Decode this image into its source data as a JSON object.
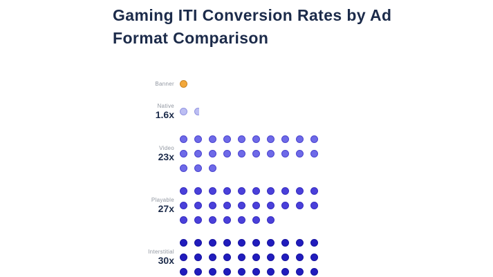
{
  "header": {
    "title": "Gaming ITI Conversion Rates by Ad Format Comparison"
  },
  "chart_data": {
    "type": "pictogram",
    "title": "Gaming ITI Conversion Rates by Ad Format Comparison",
    "dots_per_row": 10,
    "unit_value_per_dot": 1,
    "value_suffix": "x",
    "categories": [
      "Banner",
      "Native",
      "Video",
      "Playable",
      "Interstitial"
    ],
    "values": [
      1,
      1.6,
      23,
      27,
      30
    ],
    "rows": [
      {
        "category": "Banner",
        "value": 1,
        "multiplier_label": "",
        "dot_color": "#f3a83b",
        "dot_border": "#c88323"
      },
      {
        "category": "Native",
        "value": 1.6,
        "multiplier_label": "1.6x",
        "dot_color": "#bcbef3",
        "dot_border": "#9193e0"
      },
      {
        "category": "Video",
        "value": 23,
        "multiplier_label": "23x",
        "dot_color": "#6e6ae8",
        "dot_border": "#4a43cf"
      },
      {
        "category": "Playable",
        "value": 27,
        "multiplier_label": "27x",
        "dot_color": "#4a40da",
        "dot_border": "#352cc0"
      },
      {
        "category": "Interstitial",
        "value": 30,
        "multiplier_label": "30x",
        "dot_color": "#211cbd",
        "dot_border": "#1512a0"
      }
    ]
  }
}
